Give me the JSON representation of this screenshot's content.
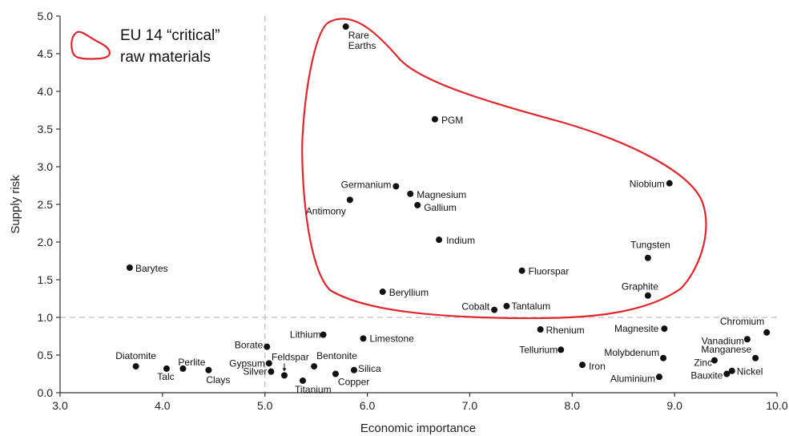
{
  "chart_data": {
    "type": "scatter",
    "xlabel": "Economic importance",
    "ylabel": "Supply risk",
    "xlim": [
      3.0,
      10.0
    ],
    "ylim": [
      0.0,
      5.0
    ],
    "x_ticks": [
      "3.0",
      "4.0",
      "5.0",
      "6.0",
      "7.0",
      "8.0",
      "9.0",
      "10.0"
    ],
    "y_ticks": [
      "0.0",
      "0.5",
      "1.0",
      "1.5",
      "2.0",
      "2.5",
      "3.0",
      "3.5",
      "4.0",
      "4.5",
      "5.0"
    ],
    "threshold_x": 5.0,
    "threshold_y": 1.0,
    "grid": false,
    "legend": {
      "position": "top-left",
      "line1": "EU 14 “critical”",
      "line2": "raw materials",
      "color": "#e0262a"
    },
    "point_color": "#111111",
    "points": [
      {
        "label": "Rare",
        "label2": "Earths",
        "x": 5.79,
        "y": 4.86
      },
      {
        "label": "PGM",
        "x": 6.66,
        "y": 3.63
      },
      {
        "label": "Niobium",
        "x": 8.95,
        "y": 2.78
      },
      {
        "label": "Germanium",
        "x": 6.28,
        "y": 2.74
      },
      {
        "label": "Magnesium",
        "x": 6.42,
        "y": 2.64
      },
      {
        "label": "Antimony",
        "x": 5.83,
        "y": 2.56
      },
      {
        "label": "Gallium",
        "x": 6.49,
        "y": 2.49
      },
      {
        "label": "Indium",
        "x": 6.7,
        "y": 2.03
      },
      {
        "label": "Tungsten",
        "x": 8.74,
        "y": 1.79
      },
      {
        "label": "Barytes",
        "x": 3.68,
        "y": 1.66
      },
      {
        "label": "Fluorspar",
        "x": 7.51,
        "y": 1.62
      },
      {
        "label": "Beryllium",
        "x": 6.15,
        "y": 1.34
      },
      {
        "label": "Graphite",
        "x": 8.74,
        "y": 1.29
      },
      {
        "label": "Cobalt",
        "x": 7.24,
        "y": 1.1
      },
      {
        "label": "Tantalum",
        "x": 7.36,
        "y": 1.15
      },
      {
        "label": "Rhenium",
        "x": 7.69,
        "y": 0.84
      },
      {
        "label": "Magnesite",
        "x": 8.9,
        "y": 0.85
      },
      {
        "label": "Chromium",
        "x": 9.9,
        "y": 0.8
      },
      {
        "label": "Lithium",
        "x": 5.57,
        "y": 0.77
      },
      {
        "label": "Limestone",
        "x": 5.96,
        "y": 0.72
      },
      {
        "label": "Vanadium",
        "x": 9.71,
        "y": 0.71
      },
      {
        "label": "Borate",
        "x": 5.02,
        "y": 0.61
      },
      {
        "label": "Tellurium",
        "x": 7.89,
        "y": 0.57
      },
      {
        "label": "Molybdenum",
        "x": 8.89,
        "y": 0.46
      },
      {
        "label": "Manganese",
        "x": 9.79,
        "y": 0.46
      },
      {
        "label": "Zinc",
        "x": 9.39,
        "y": 0.43
      },
      {
        "label": "Gypsum",
        "x": 5.04,
        "y": 0.39
      },
      {
        "label": "Iron",
        "x": 8.1,
        "y": 0.37
      },
      {
        "label": "Diatomite",
        "x": 3.74,
        "y": 0.35
      },
      {
        "label": "Bentonite",
        "x": 5.48,
        "y": 0.35
      },
      {
        "label": "Perlite",
        "x": 4.2,
        "y": 0.32
      },
      {
        "label": "Talc",
        "x": 4.04,
        "y": 0.32
      },
      {
        "label": "Clays",
        "x": 4.45,
        "y": 0.3
      },
      {
        "label": "Silica",
        "x": 5.87,
        "y": 0.3
      },
      {
        "label": "Nickel",
        "x": 9.56,
        "y": 0.29
      },
      {
        "label": "Silver",
        "x": 5.06,
        "y": 0.28
      },
      {
        "label": "Copper",
        "x": 5.69,
        "y": 0.25
      },
      {
        "label": "Bauxite",
        "x": 9.51,
        "y": 0.25
      },
      {
        "label": "Feldspar",
        "x": 5.19,
        "y": 0.23
      },
      {
        "label": "Aluminium",
        "x": 8.85,
        "y": 0.21
      },
      {
        "label": "Titanium",
        "x": 5.37,
        "y": 0.16
      }
    ]
  }
}
